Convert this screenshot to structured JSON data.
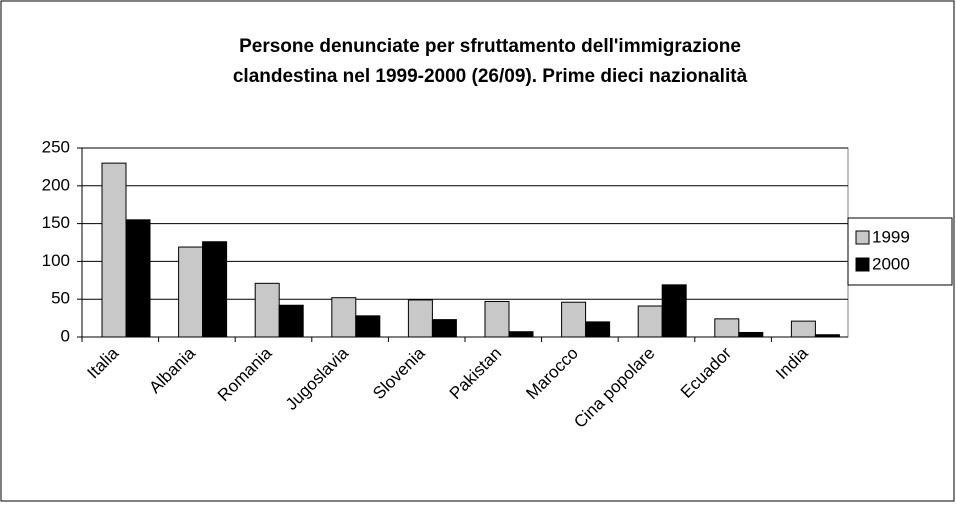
{
  "chart_data": {
    "type": "bar",
    "title": [
      "Persone denunciate per sfruttamento dell'immigrazione",
      "clandestina nel 1999-2000 (26/09). Prime dieci nazionalità"
    ],
    "categories": [
      "Italia",
      "Albania",
      "Romania",
      "Jugoslavia",
      "Slovenia",
      "Pakistan",
      "Marocco",
      "Cina popolare",
      "Ecuador",
      "India"
    ],
    "series": [
      {
        "name": "1999",
        "color": "#c8c8c8",
        "values": [
          230,
          119,
          71,
          52,
          49,
          47,
          46,
          41,
          24,
          21
        ]
      },
      {
        "name": "2000",
        "color": "#000000",
        "values": [
          155,
          126,
          42,
          28,
          23,
          7,
          20,
          69,
          6,
          3
        ]
      }
    ],
    "ylim": [
      0,
      250
    ],
    "yticks": [
      0,
      50,
      100,
      150,
      200,
      250
    ],
    "grid": true,
    "legend": "right"
  }
}
